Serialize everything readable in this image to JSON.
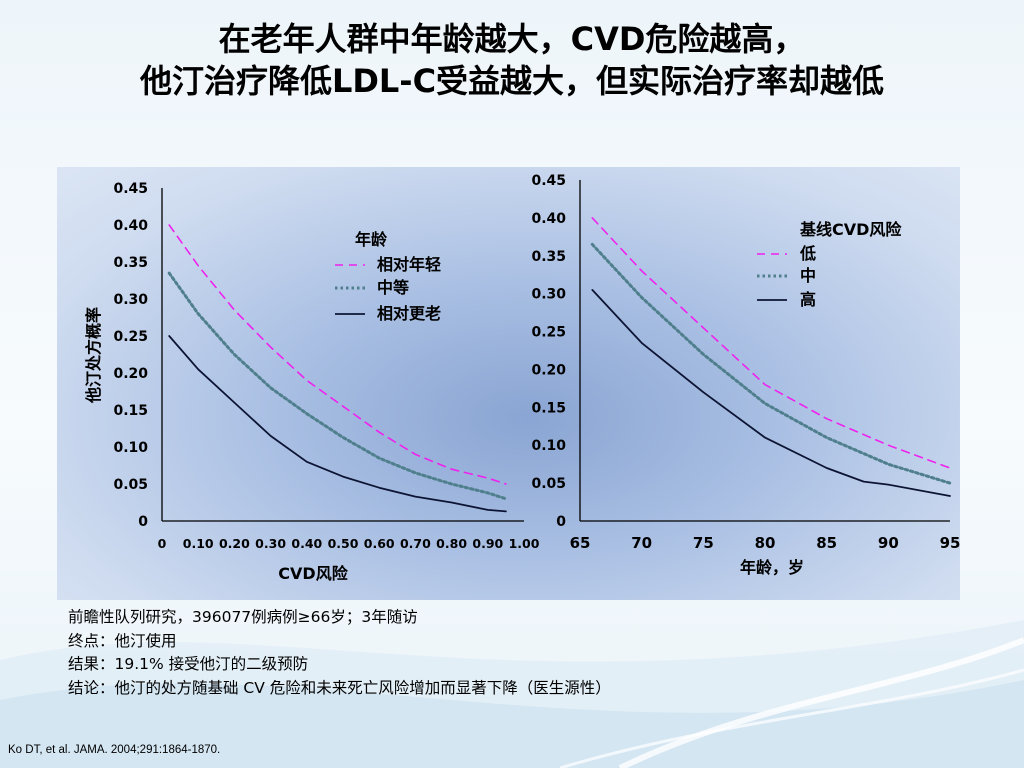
{
  "slide": {
    "title_line1": "在老年人群中年龄越大，CVD危险越高，",
    "title_line2": "他汀治疗降低LDL-C受益越大，但实际治疗率却越低"
  },
  "footnotes": [
    "前瞻性队列研究，396077例病例≥66岁；3年随访",
    "终点：他汀使用",
    "结果：19.1% 接受他汀的二级预防",
    "结论：他汀的处方随基础 CV 危险和未来死亡风险增加而显著下降（医生源性）"
  ],
  "citation": "Ko DT, et al. JAMA. 2004;291:1864-1870.",
  "colors": {
    "magenta": "#ee22ee",
    "teal": "#4f7f8c",
    "navy": "#0d1433"
  },
  "chart_data": [
    {
      "type": "line",
      "xlabel": "CVD风险",
      "ylabel": "他汀处方概率",
      "xlim": [
        0,
        1.0
      ],
      "ylim": [
        0,
        0.45
      ],
      "x_ticks": [
        "0",
        "0.10",
        "0.20",
        "0.30",
        "0.40",
        "0.50",
        "0.60",
        "0.70",
        "0.80",
        "0.90",
        "1.00"
      ],
      "y_ticks": [
        "0",
        "0.05",
        "0.10",
        "0.15",
        "0.20",
        "0.25",
        "0.30",
        "0.35",
        "0.40",
        "0.45"
      ],
      "legend_title": "年龄",
      "legend_position": "top-center",
      "series": [
        {
          "name": "相对年轻",
          "style": "dashed",
          "color": "#ee22ee",
          "x": [
            0.02,
            0.1,
            0.2,
            0.3,
            0.4,
            0.5,
            0.6,
            0.7,
            0.8,
            0.9,
            0.95
          ],
          "y": [
            0.4,
            0.345,
            0.285,
            0.235,
            0.19,
            0.155,
            0.12,
            0.09,
            0.07,
            0.058,
            0.05
          ]
        },
        {
          "name": "中等",
          "style": "dotted",
          "color": "#4f7f8c",
          "x": [
            0.02,
            0.1,
            0.2,
            0.3,
            0.4,
            0.5,
            0.6,
            0.7,
            0.8,
            0.9,
            0.95
          ],
          "y": [
            0.335,
            0.28,
            0.225,
            0.18,
            0.145,
            0.113,
            0.085,
            0.065,
            0.05,
            0.038,
            0.03
          ]
        },
        {
          "name": "相对更老",
          "style": "solid",
          "color": "#0d1433",
          "x": [
            0.02,
            0.1,
            0.2,
            0.3,
            0.4,
            0.5,
            0.6,
            0.7,
            0.8,
            0.9,
            0.95
          ],
          "y": [
            0.25,
            0.205,
            0.16,
            0.115,
            0.08,
            0.06,
            0.045,
            0.033,
            0.025,
            0.015,
            0.013
          ]
        }
      ]
    },
    {
      "type": "line",
      "xlabel": "年龄，岁",
      "ylabel": "",
      "xlim": [
        65,
        95
      ],
      "ylim": [
        0,
        0.45
      ],
      "x_ticks": [
        "65",
        "70",
        "75",
        "80",
        "85",
        "90",
        "95"
      ],
      "y_ticks": [
        "0",
        "0.05",
        "0.10",
        "0.15",
        "0.20",
        "0.25",
        "0.30",
        "0.35",
        "0.40",
        "0.45"
      ],
      "legend_title": "基线CVD风险",
      "legend_position": "top-right",
      "series": [
        {
          "name": "低",
          "style": "dashed",
          "color": "#ee22ee",
          "x": [
            66,
            70,
            75,
            80,
            85,
            90,
            95
          ],
          "y": [
            0.4,
            0.33,
            0.255,
            0.18,
            0.135,
            0.1,
            0.07
          ]
        },
        {
          "name": "中",
          "style": "dotted",
          "color": "#4f7f8c",
          "x": [
            66,
            70,
            75,
            80,
            85,
            90,
            95
          ],
          "y": [
            0.365,
            0.295,
            0.22,
            0.155,
            0.11,
            0.075,
            0.05
          ]
        },
        {
          "name": "高",
          "style": "solid",
          "color": "#0d1433",
          "x": [
            66,
            70,
            75,
            80,
            85,
            88,
            90,
            95
          ],
          "y": [
            0.305,
            0.235,
            0.17,
            0.11,
            0.07,
            0.052,
            0.048,
            0.033
          ]
        }
      ]
    }
  ]
}
